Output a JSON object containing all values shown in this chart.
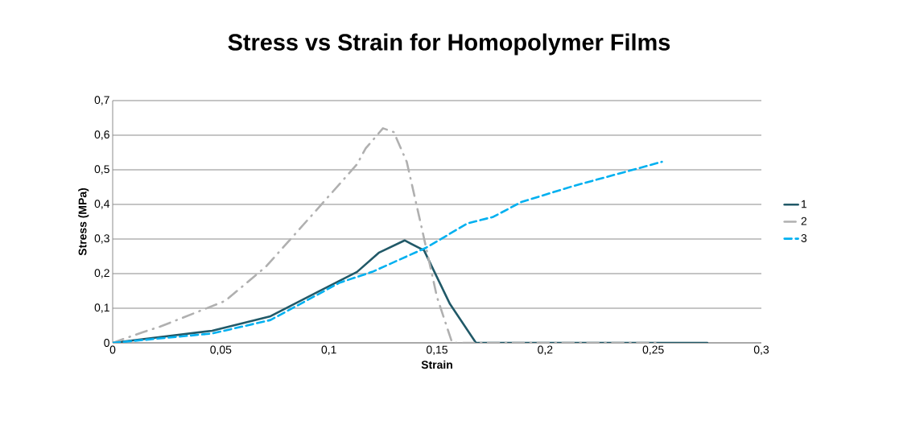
{
  "chart_data": {
    "type": "line",
    "title": "Stress vs Strain for Homopolymer Films",
    "xlabel": "Strain",
    "ylabel": "Stress (MPa)",
    "xlim": [
      0,
      0.3
    ],
    "ylim": [
      0,
      0.7
    ],
    "xticks": [
      0,
      {
        "value": 0.05,
        "label": "0,05"
      },
      {
        "value": 0.1,
        "label": "0,1"
      },
      {
        "value": 0.15,
        "label": "0,15"
      },
      {
        "value": 0.2,
        "label": "0,2"
      },
      {
        "value": 0.25,
        "label": "0,25"
      },
      {
        "value": 0.3,
        "label": "0,3"
      }
    ],
    "yticks": [
      0,
      {
        "value": 0.1,
        "label": "0,1"
      },
      {
        "value": 0.2,
        "label": "0,2"
      },
      {
        "value": 0.3,
        "label": "0,3"
      },
      {
        "value": 0.4,
        "label": "0,4"
      },
      {
        "value": 0.5,
        "label": "0,5"
      },
      {
        "value": 0.6,
        "label": "0,6"
      },
      {
        "value": 0.7,
        "label": "0,7"
      }
    ],
    "grid": "y",
    "legend": "right",
    "marker": "none",
    "series": [
      {
        "name": "1",
        "color": "#215968",
        "line_style": "solid",
        "x": [
          0,
          0.046,
          0.073,
          0.096,
          0.113,
          0.123,
          0.135,
          0.144,
          0.156,
          0.168,
          0.2,
          0.275
        ],
        "values": [
          0,
          0.035,
          0.077,
          0.151,
          0.205,
          0.26,
          0.296,
          0.267,
          0.112,
          0,
          0,
          0
        ]
      },
      {
        "name": "2",
        "color": "#b0b0b0",
        "line_style": "dashdot",
        "x": [
          0,
          0.014,
          0.022,
          0.052,
          0.071,
          0.092,
          0.097,
          0.113,
          0.117,
          0.125,
          0.13,
          0.136,
          0.143,
          0.15,
          0.157,
          0.176,
          0.252
        ],
        "values": [
          0,
          0.031,
          0.047,
          0.121,
          0.221,
          0.368,
          0.403,
          0.516,
          0.562,
          0.62,
          0.609,
          0.523,
          0.33,
          0.132,
          0,
          0,
          0
        ]
      },
      {
        "name": "3",
        "color": "#00b0f0",
        "line_style": "dashed",
        "x": [
          0,
          0.046,
          0.073,
          0.089,
          0.105,
          0.12,
          0.145,
          0.164,
          0.176,
          0.189,
          0.213,
          0.254
        ],
        "values": [
          0,
          0.027,
          0.066,
          0.12,
          0.174,
          0.205,
          0.275,
          0.345,
          0.364,
          0.407,
          0.453,
          0.523
        ]
      }
    ]
  }
}
